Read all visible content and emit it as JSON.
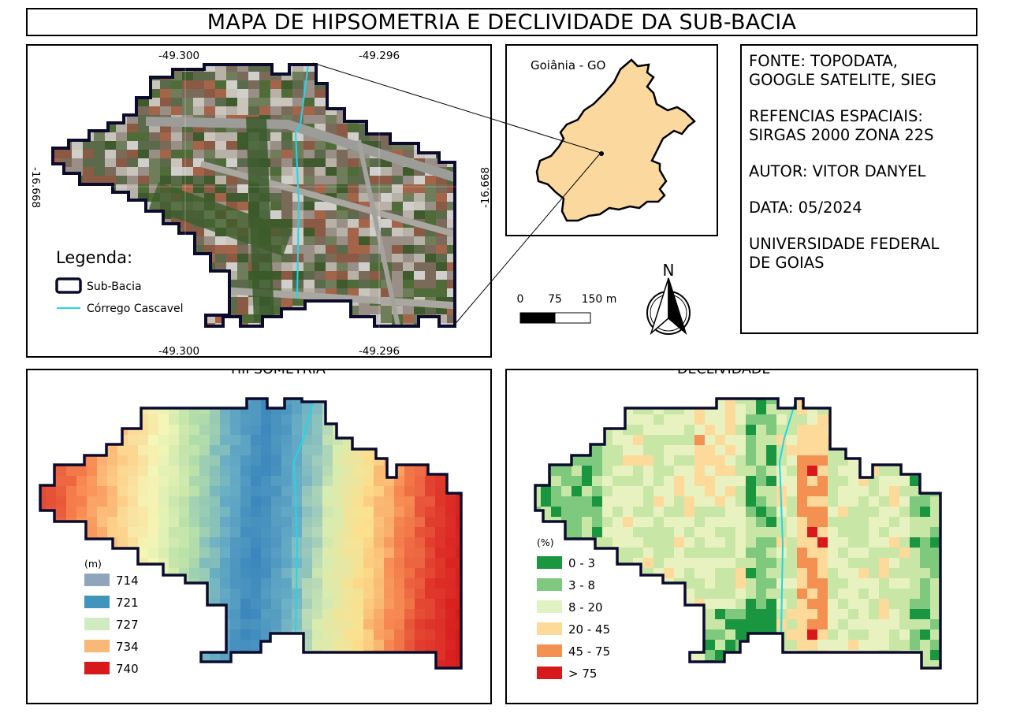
{
  "title": "MAPA DE HIPSOMETRIA E DECLIVIDADE DA SUB-BACIA",
  "satellite_map": {
    "coord_labels": {
      "top_left": "-49.300",
      "top_right": "-49.296",
      "bottom_left": "-49.300",
      "bottom_right": "-49.296",
      "left": "-16.668",
      "right": "-16.668"
    },
    "legend": {
      "title": "Legenda:",
      "items": [
        {
          "label": "Sub-Bacia",
          "color": "#0b0b2e"
        },
        {
          "label": "Córrego Cascavel",
          "color": "#1ed8e8"
        }
      ]
    }
  },
  "locator_map": {
    "label": "Goiânia - GO",
    "fill_color": "#fbd99e"
  },
  "scale_bar": {
    "ticks": [
      "0",
      "75",
      "150 m"
    ]
  },
  "north_arrow": {
    "label": "N"
  },
  "info": {
    "lines": [
      "FONTE: TOPODATA,",
      "GOOGLE SATELITE, SIEG",
      "",
      "REFENCIAS ESPACIAIS:",
      "SIRGAS 2000 ZONA 22S",
      "",
      "AUTOR: VITOR DANYEL",
      "",
      "DATA: 05/2024",
      "",
      "UNIVERSIDADE FEDERAL",
      "DE GOIAS"
    ]
  },
  "hypsometry": {
    "title": "HIPSOMETRIA",
    "legend_unit": "(m)",
    "legend": [
      {
        "label": "714",
        "color": "#8fa6ba"
      },
      {
        "label": "721",
        "color": "#4195bd"
      },
      {
        "label": "727",
        "color": "#d0ebc0"
      },
      {
        "label": "734",
        "color": "#f9b877"
      },
      {
        "label": "740",
        "color": "#d7191c"
      }
    ]
  },
  "declivity": {
    "title": "DECLIVIDADE",
    "legend_unit": "(%)",
    "legend": [
      {
        "label": "0 - 3",
        "color": "#1a9641"
      },
      {
        "label": "3 - 8",
        "color": "#7fc97f"
      },
      {
        "label": "8 - 20",
        "color": "#dff2c1"
      },
      {
        "label": "20 - 45",
        "color": "#fdda9a"
      },
      {
        "label": "45 - 75",
        "color": "#f59053"
      },
      {
        "label": "> 75",
        "color": "#d7191c"
      }
    ]
  }
}
